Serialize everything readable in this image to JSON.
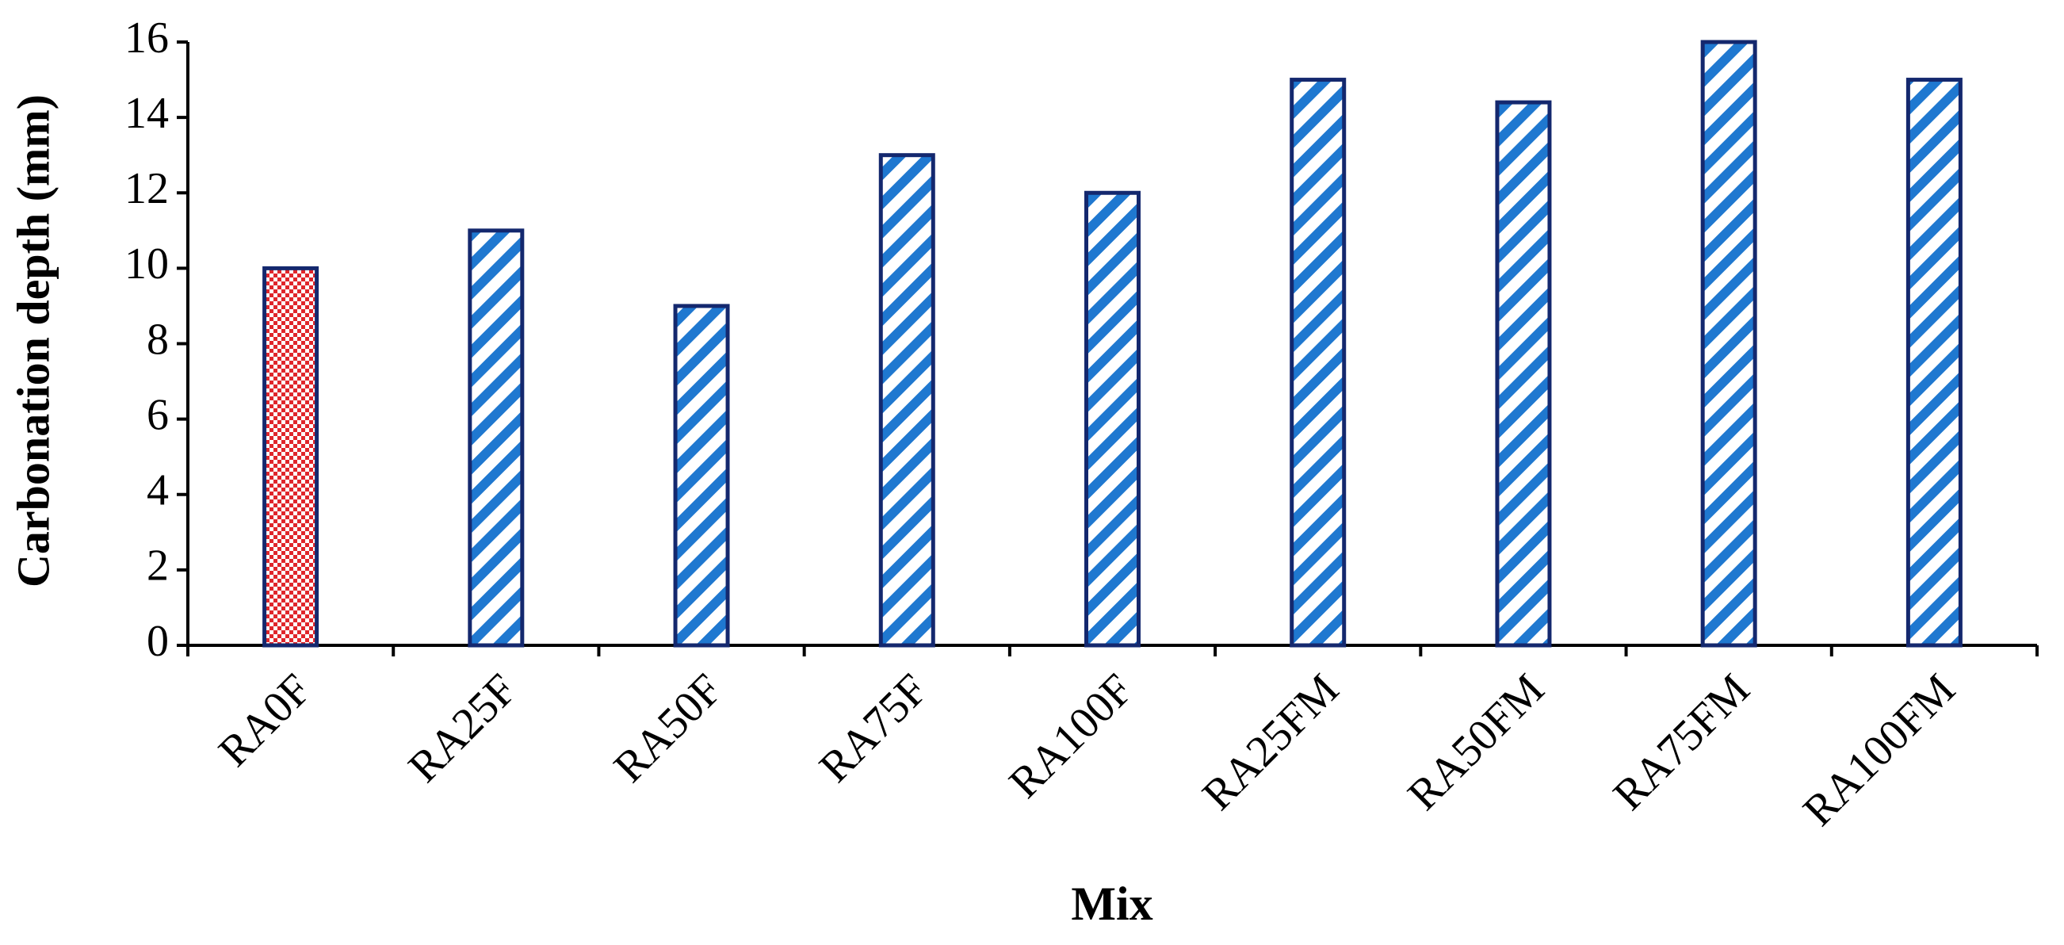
{
  "chart_data": {
    "type": "bar",
    "x_label": "Mix",
    "y_label": "Carbonation depth (mm)",
    "categories": [
      "RA0F",
      "RA25F",
      "RA50F",
      "RA75F",
      "RA100F",
      "RA25FM",
      "RA50FM",
      "RA75FM",
      "RA100FM"
    ],
    "values": [
      10,
      11,
      9,
      13,
      12,
      15,
      14.4,
      16,
      15
    ],
    "colors": [
      "#e0262b",
      "#1f78d0",
      "#1f78d0",
      "#1f78d0",
      "#1f78d0",
      "#1f78d0",
      "#1f78d0",
      "#1f78d0",
      "#1f78d0"
    ],
    "patterns": [
      "checker",
      "hatch",
      "hatch",
      "hatch",
      "hatch",
      "hatch",
      "hatch",
      "hatch",
      "hatch"
    ],
    "edge_color": "#14286e",
    "ylim": [
      0,
      16
    ],
    "yticks": [
      0,
      2,
      4,
      6,
      8,
      10,
      12,
      14,
      16
    ],
    "grid": false
  }
}
